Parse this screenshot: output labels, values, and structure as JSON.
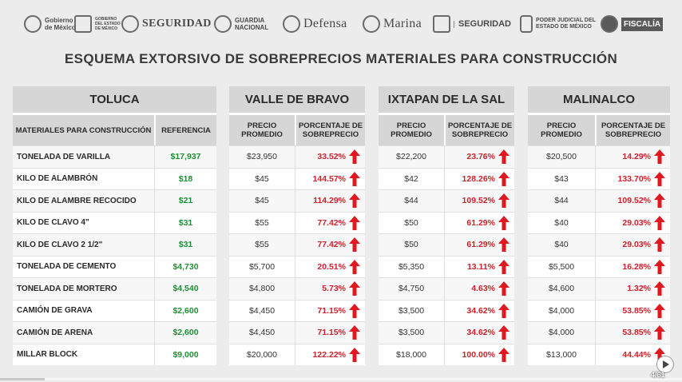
{
  "header": {
    "logos": [
      {
        "name": "gobierno-mexico-logo",
        "text": "Gobierno de México"
      },
      {
        "name": "edomex-logo",
        "text": "GOBIERNO DEL ESTADO DE MÉXICO"
      },
      {
        "name": "seguridad-logo",
        "text": "SEGURIDAD"
      },
      {
        "name": "guardia-nacional-logo",
        "text": "GUARDIA NACIONAL"
      },
      {
        "name": "defensa-logo",
        "text": "Defensa"
      },
      {
        "name": "marina-logo",
        "text": "Marina"
      },
      {
        "name": "seguridad-edomex-logo",
        "text": "SEGURIDAD"
      },
      {
        "name": "poder-judicial-logo",
        "text": "PODER JUDICIAL DEL ESTADO DE MÉXICO"
      },
      {
        "name": "fiscalia-logo",
        "text": "FISCALÍA"
      }
    ]
  },
  "title": "ESQUEMA EXTORSIVO DE SOBREPRECIOS MATERIALES PARA CONSTRUCCIÓN",
  "toluca": {
    "region": "TOLUCA",
    "col_material": "MATERIALES PARA CONSTRUCCIÓN",
    "col_ref": "REFERENCIA",
    "rows": [
      {
        "material": "TONELADA DE VARILLA",
        "ref": "$17,937"
      },
      {
        "material": "KILO DE ALAMBRÓN",
        "ref": "$18"
      },
      {
        "material": "KILO DE ALAMBRE RECOCIDO",
        "ref": "$21"
      },
      {
        "material": "KILO DE CLAVO 4\"",
        "ref": "$31"
      },
      {
        "material": "KILO DE CLAVO 2 1/2\"",
        "ref": "$31"
      },
      {
        "material": "TONELADA DE CEMENTO",
        "ref": "$4,730"
      },
      {
        "material": "TONELADA DE MORTERO",
        "ref": "$4,540"
      },
      {
        "material": "CAMIÓN DE GRAVA",
        "ref": "$2,600"
      },
      {
        "material": "CAMIÓN DE ARENA",
        "ref": "$2,600"
      },
      {
        "material": "MILLAR BLOCK",
        "ref": "$9,000"
      }
    ]
  },
  "regions": [
    {
      "name": "VALLE DE BRAVO",
      "col_price": "PRECIO PROMEDIO",
      "col_pct": "PORCENTAJE DE SOBREPRECIO",
      "rows": [
        {
          "price": "$23,950",
          "pct": "33.52%"
        },
        {
          "price": "$45",
          "pct": "144.57%"
        },
        {
          "price": "$45",
          "pct": "114.29%"
        },
        {
          "price": "$55",
          "pct": "77.42%"
        },
        {
          "price": "$55",
          "pct": "77.42%"
        },
        {
          "price": "$5,700",
          "pct": "20.51%"
        },
        {
          "price": "$4,800",
          "pct": "5.73%"
        },
        {
          "price": "$4,450",
          "pct": "71.15%"
        },
        {
          "price": "$4,450",
          "pct": "71.15%"
        },
        {
          "price": "$20,000",
          "pct": "122.22%"
        }
      ]
    },
    {
      "name": "IXTAPAN DE LA SAL",
      "col_price": "PRECIO PROMEDIO",
      "col_pct": "PORCENTAJE DE SOBREPRECIO",
      "rows": [
        {
          "price": "$22,200",
          "pct": "23.76%"
        },
        {
          "price": "$42",
          "pct": "128.26%"
        },
        {
          "price": "$44",
          "pct": "109.52%"
        },
        {
          "price": "$50",
          "pct": "61.29%"
        },
        {
          "price": "$50",
          "pct": "61.29%"
        },
        {
          "price": "$5,350",
          "pct": "13.11%"
        },
        {
          "price": "$4,750",
          "pct": "4.63%"
        },
        {
          "price": "$3,500",
          "pct": "34.62%"
        },
        {
          "price": "$3,500",
          "pct": "34.62%"
        },
        {
          "price": "$18,000",
          "pct": "100.00%"
        }
      ]
    },
    {
      "name": "MALINALCO",
      "col_price": "PRECIO PROMEDIO",
      "col_pct": "PORCENTAJE DE SOBREPRECIO",
      "rows": [
        {
          "price": "$20,500",
          "pct": "14.29%"
        },
        {
          "price": "$43",
          "pct": "133.70%"
        },
        {
          "price": "$44",
          "pct": "109.52%"
        },
        {
          "price": "$40",
          "pct": "29.03%"
        },
        {
          "price": "$40",
          "pct": "29.03%"
        },
        {
          "price": "$5,500",
          "pct": "16.28%"
        },
        {
          "price": "$4,600",
          "pct": "1.32%"
        },
        {
          "price": "$4,000",
          "pct": "53.85%"
        },
        {
          "price": "$4,000",
          "pct": "53.85%"
        },
        {
          "price": "$13,000",
          "pct": "44.44%"
        }
      ]
    }
  ],
  "player": {
    "counter": "4/61",
    "progress_fraction": 0.065
  },
  "colors": {
    "reference_green": "#1f8f35",
    "surcharge_red": "#d0202a",
    "header_gray": "#d6d6d6"
  },
  "icons": {
    "increase": "up-arrow-icon",
    "play": "play-icon"
  }
}
